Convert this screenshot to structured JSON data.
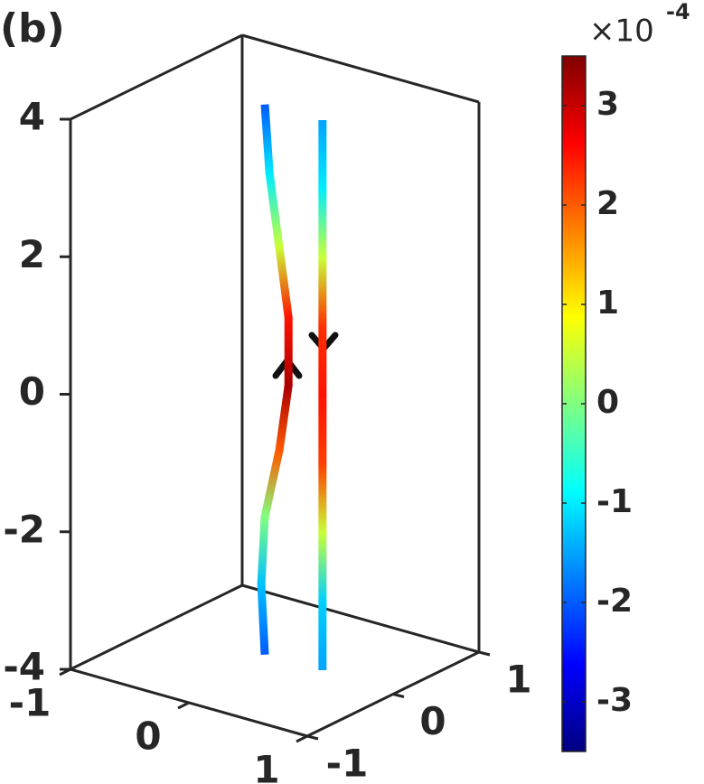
{
  "chart_data": {
    "type": "line3d",
    "panel_label": "(b)",
    "xlim": [
      -1,
      1
    ],
    "ylim": [
      -1,
      1
    ],
    "zlim": [
      -4,
      4
    ],
    "xticks": [
      -1,
      0,
      1
    ],
    "yticks": [
      -1,
      0,
      1
    ],
    "zticks": [
      -4,
      -2,
      0,
      2,
      4
    ],
    "colorbar": {
      "clim": [
        -3.5,
        3.5
      ],
      "ticks": [
        -3,
        -2,
        -1,
        0,
        1,
        2,
        3
      ],
      "scale_base": "×10",
      "scale_exponent": "-4",
      "colormap": "jet"
    },
    "series": [
      {
        "x": [
          -0.12,
          -0.15,
          -0.12,
          0.0,
          0.08,
          0.08,
          0.0,
          -0.08,
          -0.12
        ],
        "y": [
          0.05,
          0.05,
          0.05,
          0.05,
          0.05,
          0.05,
          0.05,
          0.05,
          0.05
        ],
        "z": [
          -4,
          -3,
          -2,
          -1,
          0,
          1,
          2,
          3,
          4
        ],
        "c": [
          -2,
          -1.3,
          0,
          2,
          3.2,
          2.5,
          0.5,
          -1,
          -2
        ]
      },
      {
        "x": [
          0.36,
          0.36,
          0.36,
          0.36,
          0.36,
          0.36,
          0.36,
          0.36,
          0.36
        ],
        "y": [
          0.06,
          0.06,
          0.06,
          0.06,
          0.06,
          0.06,
          0.06,
          0.06,
          0.06
        ],
        "z": [
          -4,
          -3,
          -2,
          -1,
          0,
          1,
          2,
          3,
          4
        ],
        "c": [
          -1.5,
          -1.2,
          0.5,
          2.2,
          2.5,
          2.3,
          0.5,
          -1,
          -1.5
        ]
      }
    ]
  }
}
